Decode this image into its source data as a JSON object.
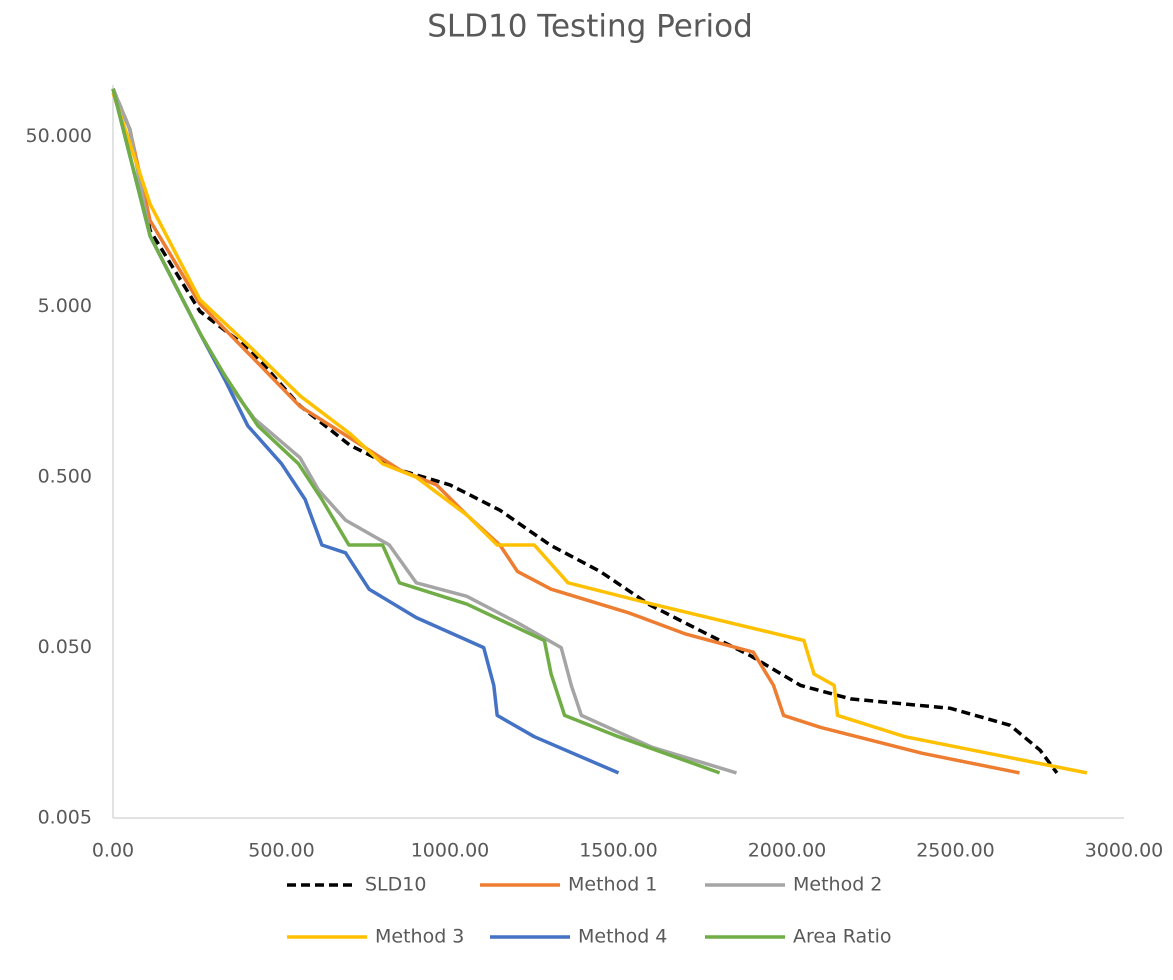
{
  "chart_data": {
    "type": "line",
    "title": "SLD10 Testing Period",
    "log_y": true,
    "grid": false,
    "legend": "bottom",
    "xlim": [
      0,
      3000
    ],
    "xticks": [
      {
        "value": 0,
        "label": "0.00"
      },
      {
        "value": 500,
        "label": "500.00"
      },
      {
        "value": 1000,
        "label": "1000.00"
      },
      {
        "value": 1500,
        "label": "1500.00"
      },
      {
        "value": 2000,
        "label": "2000.00"
      },
      {
        "value": 2500,
        "label": "2500.00"
      },
      {
        "value": 3000,
        "label": "3000.00"
      }
    ],
    "ylim": [
      0.005,
      100
    ],
    "yticks": [
      {
        "value": 0.005,
        "label": "0.005"
      },
      {
        "value": 0.05,
        "label": "0.050"
      },
      {
        "value": 0.5,
        "label": "0.500"
      },
      {
        "value": 5,
        "label": "5.000"
      },
      {
        "value": 50,
        "label": "50.000"
      }
    ],
    "series": [
      {
        "name": "SLD10",
        "color": "#000000",
        "dashed": true,
        "x": [
          0,
          50,
          110,
          258,
          407,
          555,
          703,
          852,
          1000,
          1148,
          1297,
          1445,
          1593,
          1742,
          1890,
          2040,
          2189,
          2485,
          2662,
          2751,
          2801
        ],
        "values": [
          95,
          55,
          14,
          4.7,
          2.8,
          1.31,
          0.77,
          0.55,
          0.45,
          0.32,
          0.2,
          0.14,
          0.089,
          0.063,
          0.045,
          0.03,
          0.025,
          0.022,
          0.0175,
          0.0125,
          0.0092
        ]
      },
      {
        "name": "Method 1",
        "color": "#ed7d31",
        "x": [
          0,
          50,
          110,
          258,
          407,
          555,
          703,
          852,
          960,
          1050,
          1148,
          1200,
          1300,
          1530,
          1700,
          1900,
          1960,
          1990,
          2100,
          2400,
          2690
        ],
        "values": [
          95,
          55,
          16,
          5.2,
          2.6,
          1.3,
          0.85,
          0.55,
          0.45,
          0.3,
          0.2,
          0.14,
          0.11,
          0.08,
          0.06,
          0.047,
          0.03,
          0.02,
          0.017,
          0.012,
          0.0092
        ]
      },
      {
        "name": "Method 2",
        "color": "#a5a5a5",
        "x": [
          0,
          50,
          110,
          258,
          330,
          420,
          555,
          610,
          690,
          820,
          900,
          1050,
          1200,
          1330,
          1360,
          1390,
          1600,
          1850
        ],
        "values": [
          95,
          55,
          13,
          3.5,
          1.9,
          1.1,
          0.65,
          0.42,
          0.28,
          0.2,
          0.12,
          0.1,
          0.07,
          0.05,
          0.03,
          0.02,
          0.013,
          0.0092
        ]
      },
      {
        "name": "Method 3",
        "color": "#ffc000",
        "x": [
          0,
          110,
          258,
          407,
          555,
          703,
          800,
          900,
          1050,
          1140,
          1250,
          1350,
          1600,
          2050,
          2080,
          2140,
          2150,
          2350,
          2890
        ],
        "values": [
          90,
          20,
          5.5,
          2.9,
          1.5,
          0.9,
          0.6,
          0.5,
          0.3,
          0.2,
          0.2,
          0.12,
          0.09,
          0.055,
          0.035,
          0.03,
          0.02,
          0.015,
          0.0092
        ]
      },
      {
        "name": "Method 4",
        "color": "#4472c4",
        "x": [
          0,
          110,
          258,
          330,
          400,
          500,
          570,
          620,
          690,
          760,
          900,
          1100,
          1130,
          1140,
          1250,
          1500
        ],
        "values": [
          95,
          13,
          3.5,
          1.9,
          1.0,
          0.6,
          0.37,
          0.2,
          0.18,
          0.11,
          0.075,
          0.05,
          0.03,
          0.02,
          0.015,
          0.0092
        ]
      },
      {
        "name": "Area Ratio",
        "color": "#70ad47",
        "x": [
          0,
          110,
          258,
          330,
          430,
          550,
          620,
          700,
          800,
          850,
          1050,
          1280,
          1300,
          1340,
          1500,
          1800
        ],
        "values": [
          95,
          13,
          3.5,
          2.0,
          1.0,
          0.6,
          0.37,
          0.2,
          0.2,
          0.12,
          0.09,
          0.055,
          0.035,
          0.02,
          0.015,
          0.0092
        ]
      }
    ]
  }
}
